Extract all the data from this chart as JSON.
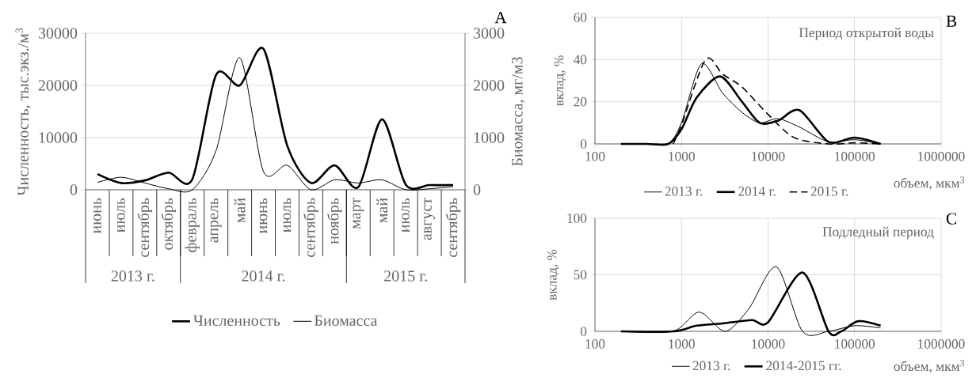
{
  "chart_data": [
    {
      "type": "line",
      "title": "A",
      "ylabel": "Численность, тыс.экз./м$^{3}$",
      "y2label": "Биомасса, мг/м3",
      "categories": [
        "июнь",
        "июль",
        "сентябрь",
        "октябрь",
        "февраль",
        "апрель",
        "май",
        "июнь",
        "июль",
        "сентябрь",
        "ноябрь",
        "март",
        "май",
        "июль",
        "август",
        "сентябрь"
      ],
      "series": [
        {
          "name": "Численность",
          "color": "#000000",
          "values": [
            3000,
            1300,
            1800,
            3300,
            2000,
            22000,
            20000,
            27000,
            8500,
            1300,
            4700,
            500,
            13500,
            1000,
            900,
            900
          ]
        },
        {
          "name": "Биомасса",
          "color": "#000000",
          "axis": "y2",
          "values": [
            140,
            240,
            130,
            20,
            0,
            750,
            2530,
            350,
            470,
            0,
            190,
            130,
            190,
            0,
            20,
            60
          ]
        }
      ],
      "ylim": [
        0,
        30000
      ],
      "yticks": [
        0,
        10000,
        20000,
        30000
      ],
      "y2lim": [
        0,
        3000
      ],
      "y2ticks": [
        0,
        1000,
        2000,
        3000
      ],
      "grid": "y",
      "legend": "bottom",
      "annotations": [
        "2013 г.",
        "2014 г.",
        "2015 г."
      ]
    },
    {
      "type": "line",
      "title": "B",
      "xlabel": "объем, мкм$^{3}$",
      "ylabel": "вклад, %",
      "log": "x",
      "series": [
        {
          "name": "2013 г.",
          "color": "#000000",
          "x": [
            200,
            400,
            700,
            1000,
            1700,
            3000,
            5000,
            8000,
            13000,
            23000,
            50000,
            100000,
            200000
          ],
          "values": [
            0,
            0,
            0,
            10,
            38,
            24,
            15,
            10,
            12,
            8,
            1,
            2,
            0
          ]
        },
        {
          "name": "2014 г.",
          "color": "#000000",
          "x": [
            200,
            400,
            700,
            1000,
            1500,
            2800,
            5000,
            8000,
            13000,
            23000,
            50000,
            100000,
            200000
          ],
          "values": [
            0,
            0,
            0,
            7,
            22,
            32,
            20,
            10,
            11,
            16,
            1,
            3,
            0
          ]
        },
        {
          "name": "2015 г.",
          "color": "#000000",
          "line_style": "dashed",
          "x": [
            800,
            1000,
            1900,
            3000,
            5000,
            10000,
            20000,
            50000,
            100000,
            200000
          ],
          "values": [
            0,
            9,
            40,
            33,
            27,
            14,
            3,
            0,
            0.5,
            0
          ]
        }
      ],
      "xlim": [
        100,
        1000000
      ],
      "xticks": [
        100,
        1000,
        10000,
        100000,
        1000000
      ],
      "ylim": [
        0,
        60
      ],
      "yticks": [
        0,
        20,
        40,
        60
      ],
      "grid": true,
      "legend": "bottom",
      "annotations": [
        "Период открытой воды"
      ]
    },
    {
      "type": "line",
      "title": "C",
      "xlabel": "объем, мкм$^{3}$",
      "ylabel": "вклад, %",
      "log": "x",
      "series": [
        {
          "name": "2013 г.",
          "color": "#000000",
          "x": [
            200,
            800,
            1600,
            3200,
            6000,
            12500,
            25000,
            50000,
            100000,
            200000
          ],
          "values": [
            0,
            0,
            17,
            0,
            20,
            57,
            0,
            0,
            5,
            3
          ]
        },
        {
          "name": "2014-2015 гг.",
          "color": "#000000",
          "x": [
            200,
            800,
            1500,
            3000,
            6500,
            10000,
            25000,
            50000,
            70000,
            110000,
            200000
          ],
          "values": [
            0,
            0,
            5,
            7,
            10,
            8,
            52,
            0,
            0,
            9,
            5
          ]
        }
      ],
      "xlim": [
        100,
        1000000
      ],
      "xticks": [
        100,
        1000,
        10000,
        100000,
        1000000
      ],
      "ylim": [
        0,
        100
      ],
      "yticks": [
        0,
        50,
        100
      ],
      "grid": true,
      "legend": "bottom",
      "annotations": [
        "Подледный период"
      ]
    }
  ]
}
